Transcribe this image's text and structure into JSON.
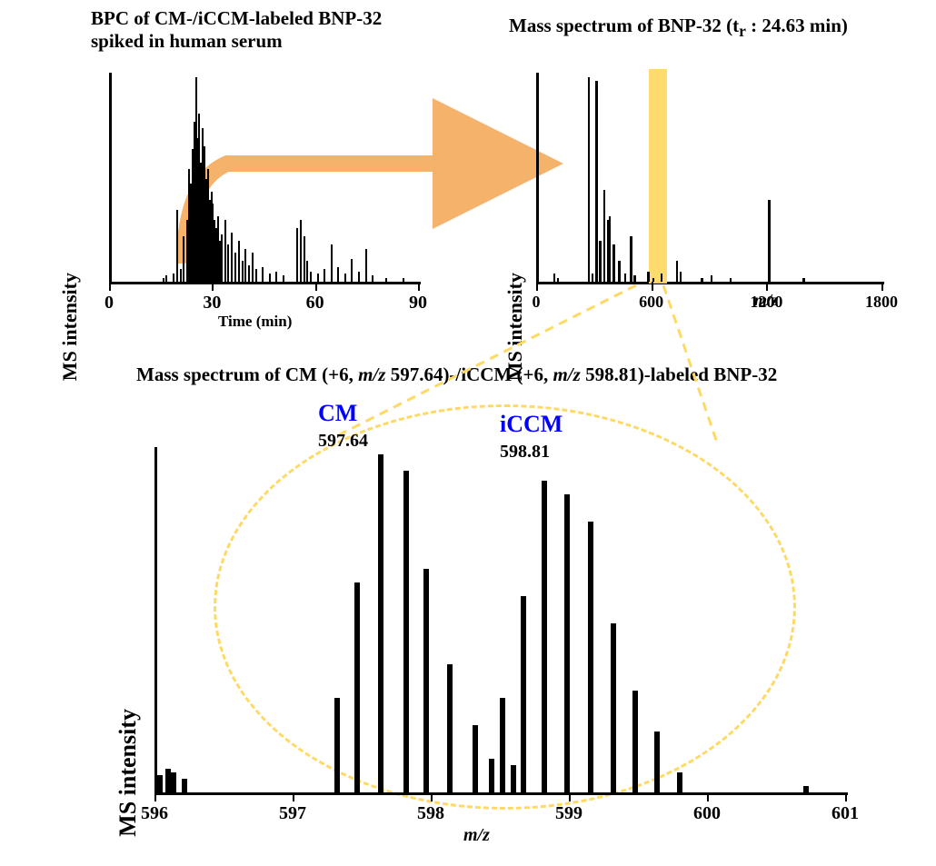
{
  "colors": {
    "fg": "#000000",
    "bg": "#ffffff",
    "arrow": "#f4b26a",
    "highlight": "#ffd966",
    "dash": "#ffd966",
    "cm_label": "#0000ff"
  },
  "fonts": {
    "title_pt": 21,
    "axis_label_pt": 20,
    "tick_pt": 20,
    "anno_value_pt": 20,
    "anno_name_pt": 26
  },
  "chartA": {
    "title": "BPC of CM-/iCCM-labeled BNP-32 spiked in human serum",
    "xlabel": "Time (min)",
    "ylabel": "MS intensity",
    "xlim": [
      0,
      90
    ],
    "xticks": [
      0,
      30,
      60,
      90
    ],
    "type": "chromatogram",
    "bars": [
      {
        "t": 15,
        "h": 0.02
      },
      {
        "t": 16,
        "h": 0.03
      },
      {
        "t": 18,
        "h": 0.04
      },
      {
        "t": 19,
        "h": 0.35
      },
      {
        "t": 20,
        "h": 0.06
      },
      {
        "t": 21,
        "h": 0.22
      },
      {
        "t": 22,
        "h": 0.3
      },
      {
        "t": 22.5,
        "h": 0.55
      },
      {
        "t": 23,
        "h": 0.48
      },
      {
        "t": 23.5,
        "h": 0.65
      },
      {
        "t": 24,
        "h": 0.78
      },
      {
        "t": 24.5,
        "h": 0.92
      },
      {
        "t": 24.6,
        "h": 1.0
      },
      {
        "t": 25,
        "h": 0.7
      },
      {
        "t": 25.5,
        "h": 0.82
      },
      {
        "t": 26,
        "h": 0.58
      },
      {
        "t": 26.5,
        "h": 0.75
      },
      {
        "t": 27,
        "h": 0.66
      },
      {
        "t": 27.5,
        "h": 0.5
      },
      {
        "t": 28,
        "h": 0.55
      },
      {
        "t": 28.5,
        "h": 0.4
      },
      {
        "t": 29,
        "h": 0.44
      },
      {
        "t": 29.5,
        "h": 0.38
      },
      {
        "t": 30,
        "h": 0.3
      },
      {
        "t": 30.5,
        "h": 0.26
      },
      {
        "t": 31,
        "h": 0.32
      },
      {
        "t": 31.5,
        "h": 0.2
      },
      {
        "t": 32,
        "h": 0.23
      },
      {
        "t": 33,
        "h": 0.3
      },
      {
        "t": 34,
        "h": 0.18
      },
      {
        "t": 35,
        "h": 0.24
      },
      {
        "t": 36,
        "h": 0.14
      },
      {
        "t": 37,
        "h": 0.2
      },
      {
        "t": 38,
        "h": 0.1
      },
      {
        "t": 39,
        "h": 0.16
      },
      {
        "t": 40,
        "h": 0.08
      },
      {
        "t": 41,
        "h": 0.14
      },
      {
        "t": 42,
        "h": 0.06
      },
      {
        "t": 44,
        "h": 0.07
      },
      {
        "t": 46,
        "h": 0.04
      },
      {
        "t": 48,
        "h": 0.05
      },
      {
        "t": 50,
        "h": 0.03
      },
      {
        "t": 54,
        "h": 0.26
      },
      {
        "t": 55,
        "h": 0.3
      },
      {
        "t": 56,
        "h": 0.22
      },
      {
        "t": 57,
        "h": 0.1
      },
      {
        "t": 58,
        "h": 0.05
      },
      {
        "t": 60,
        "h": 0.04
      },
      {
        "t": 62,
        "h": 0.06
      },
      {
        "t": 64,
        "h": 0.18
      },
      {
        "t": 66,
        "h": 0.07
      },
      {
        "t": 68,
        "h": 0.04
      },
      {
        "t": 70,
        "h": 0.11
      },
      {
        "t": 72,
        "h": 0.05
      },
      {
        "t": 74,
        "h": 0.16
      },
      {
        "t": 76,
        "h": 0.03
      },
      {
        "t": 80,
        "h": 0.02
      },
      {
        "t": 85,
        "h": 0.02
      }
    ]
  },
  "chartB": {
    "title": "Mass spectrum of BNP-32 (t",
    "title_sub": "r",
    "title_tail": " : 24.63 min)",
    "xlabel": "m/z",
    "ylabel": "MS intensity",
    "xlim": [
      0,
      1800
    ],
    "xticks": [
      0,
      600,
      1200,
      1800
    ],
    "type": "mass_spectrum",
    "highlight_x": 598,
    "highlight_w": 48,
    "bars": [
      {
        "mz": 80,
        "h": 0.04
      },
      {
        "mz": 100,
        "h": 0.02
      },
      {
        "mz": 260,
        "h": 1.0
      },
      {
        "mz": 280,
        "h": 0.04
      },
      {
        "mz": 300,
        "h": 0.98
      },
      {
        "mz": 320,
        "h": 0.2
      },
      {
        "mz": 340,
        "h": 0.45
      },
      {
        "mz": 360,
        "h": 0.3
      },
      {
        "mz": 370,
        "h": 0.32
      },
      {
        "mz": 390,
        "h": 0.18
      },
      {
        "mz": 420,
        "h": 0.1
      },
      {
        "mz": 450,
        "h": 0.04
      },
      {
        "mz": 480,
        "h": 0.22
      },
      {
        "mz": 500,
        "h": 0.03
      },
      {
        "mz": 570,
        "h": 0.05
      },
      {
        "mz": 598,
        "h": 0.02
      },
      {
        "mz": 640,
        "h": 0.04
      },
      {
        "mz": 720,
        "h": 0.1
      },
      {
        "mz": 740,
        "h": 0.05
      },
      {
        "mz": 850,
        "h": 0.02
      },
      {
        "mz": 900,
        "h": 0.03
      },
      {
        "mz": 1000,
        "h": 0.02
      },
      {
        "mz": 1200,
        "h": 0.4
      },
      {
        "mz": 1380,
        "h": 0.02
      }
    ]
  },
  "chartC": {
    "title_pre": "Mass spectrum of CM (+6, ",
    "title_mz1": "m/z",
    "title_mid": " 597.64)-/iCCM (+6, ",
    "title_mz2": "m/z",
    "title_post": " 598.81)-labeled BNP-32",
    "xlabel": "m/z",
    "ylabel": "MS intensity",
    "xlim": [
      596,
      601
    ],
    "xticks": [
      596,
      597,
      598,
      599,
      600,
      601
    ],
    "type": "isotope_spectrum",
    "annotations": {
      "cm_name": "CM",
      "cm_value": "597.64",
      "cm_color": "#0000ff",
      "iccm_name": "iCCM",
      "iccm_value": "598.81",
      "iccm_color": "#0000ff"
    },
    "bars": [
      {
        "mz": 596.02,
        "h": 0.05
      },
      {
        "mz": 596.08,
        "h": 0.07
      },
      {
        "mz": 596.12,
        "h": 0.06
      },
      {
        "mz": 596.2,
        "h": 0.04
      },
      {
        "mz": 597.3,
        "h": 0.28
      },
      {
        "mz": 597.45,
        "h": 0.62
      },
      {
        "mz": 597.62,
        "h": 1.0
      },
      {
        "mz": 597.8,
        "h": 0.95
      },
      {
        "mz": 597.95,
        "h": 0.66
      },
      {
        "mz": 598.12,
        "h": 0.38
      },
      {
        "mz": 598.3,
        "h": 0.2
      },
      {
        "mz": 598.42,
        "h": 0.1
      },
      {
        "mz": 598.5,
        "h": 0.28
      },
      {
        "mz": 598.58,
        "h": 0.08
      },
      {
        "mz": 598.65,
        "h": 0.58
      },
      {
        "mz": 598.8,
        "h": 0.92
      },
      {
        "mz": 598.97,
        "h": 0.88
      },
      {
        "mz": 599.14,
        "h": 0.8
      },
      {
        "mz": 599.3,
        "h": 0.5
      },
      {
        "mz": 599.46,
        "h": 0.3
      },
      {
        "mz": 599.62,
        "h": 0.18
      },
      {
        "mz": 599.78,
        "h": 0.06
      },
      {
        "mz": 600.7,
        "h": 0.02
      }
    ]
  }
}
